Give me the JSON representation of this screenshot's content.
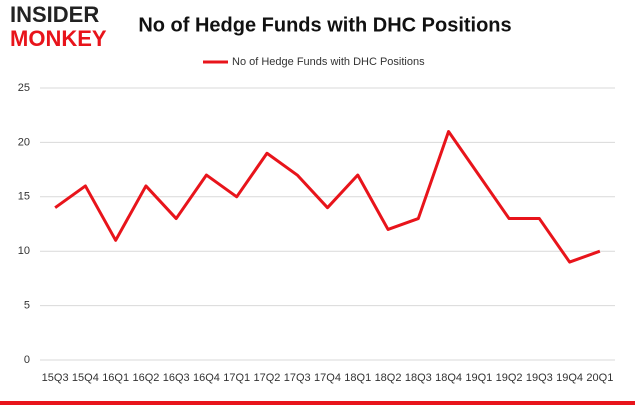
{
  "logo": {
    "top": "INSIDER",
    "bottom": "MONKEY"
  },
  "chart_data": {
    "type": "line",
    "title": "No of Hedge Funds with DHC Positions",
    "categories": [
      "15Q3",
      "15Q4",
      "16Q1",
      "16Q2",
      "16Q3",
      "16Q4",
      "17Q1",
      "17Q2",
      "17Q3",
      "17Q4",
      "18Q1",
      "18Q2",
      "18Q3",
      "18Q4",
      "19Q1",
      "19Q2",
      "19Q3",
      "19Q4",
      "20Q1"
    ],
    "series": [
      {
        "name": "No of Hedge Funds with DHC Positions",
        "color": "#e8141b",
        "values": [
          14,
          16,
          11,
          16,
          13,
          17,
          15,
          19,
          17,
          14,
          17,
          12,
          13,
          21,
          17,
          13,
          13,
          9,
          10
        ]
      }
    ],
    "ylim": [
      0,
      25
    ],
    "yticks": [
      0,
      5,
      10,
      15,
      20,
      25
    ],
    "grid": true,
    "legend": "top"
  }
}
